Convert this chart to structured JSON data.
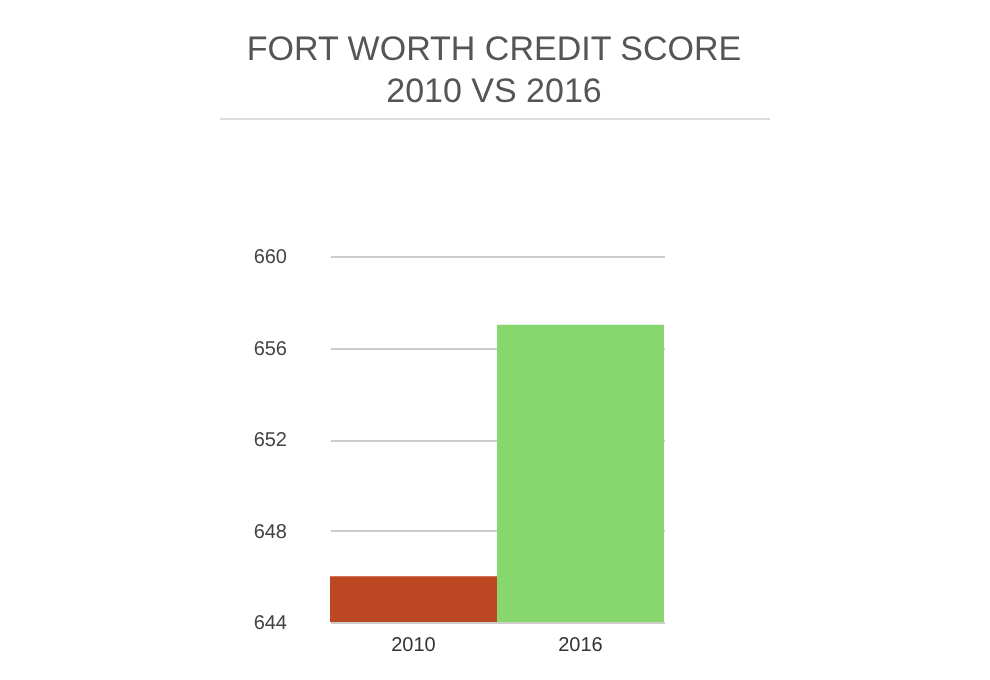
{
  "chart_data": {
    "type": "bar",
    "title": "FORT WORTH CREDIT SCORE 2010 VS 2016",
    "categories": [
      "2010",
      "2016"
    ],
    "values": [
      646,
      657
    ],
    "colors": [
      "#bc4823",
      "#88d66e"
    ],
    "ylim": [
      644,
      660
    ],
    "yticks": [
      644,
      648,
      652,
      656,
      660
    ],
    "grid": "y"
  }
}
